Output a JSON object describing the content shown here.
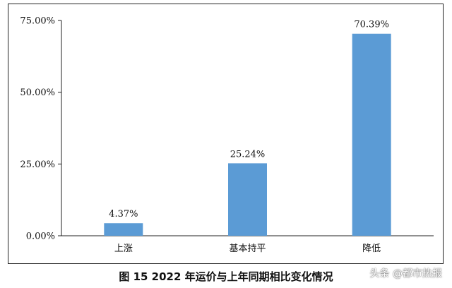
{
  "caption": "图 15    2022 年运价与上年同期相比变化情况",
  "watermark": "头条 @都市热报",
  "colors": {
    "bar": "#5b9bd5",
    "axis": "#222222",
    "text": "#111111"
  },
  "chart_data": {
    "type": "bar",
    "categories": [
      "上涨",
      "基本持平",
      "降低"
    ],
    "values": [
      4.37,
      25.24,
      70.39
    ],
    "value_labels": [
      "4.37%",
      "25.24%",
      "70.39%"
    ],
    "ylim": [
      0,
      75
    ],
    "yticks": [
      0,
      25,
      50,
      75
    ],
    "ytick_labels": [
      "0.00%",
      "25.00%",
      "50.00%",
      "75.00%"
    ],
    "title": "",
    "xlabel": "",
    "ylabel": "",
    "grid": false,
    "legend": false
  }
}
